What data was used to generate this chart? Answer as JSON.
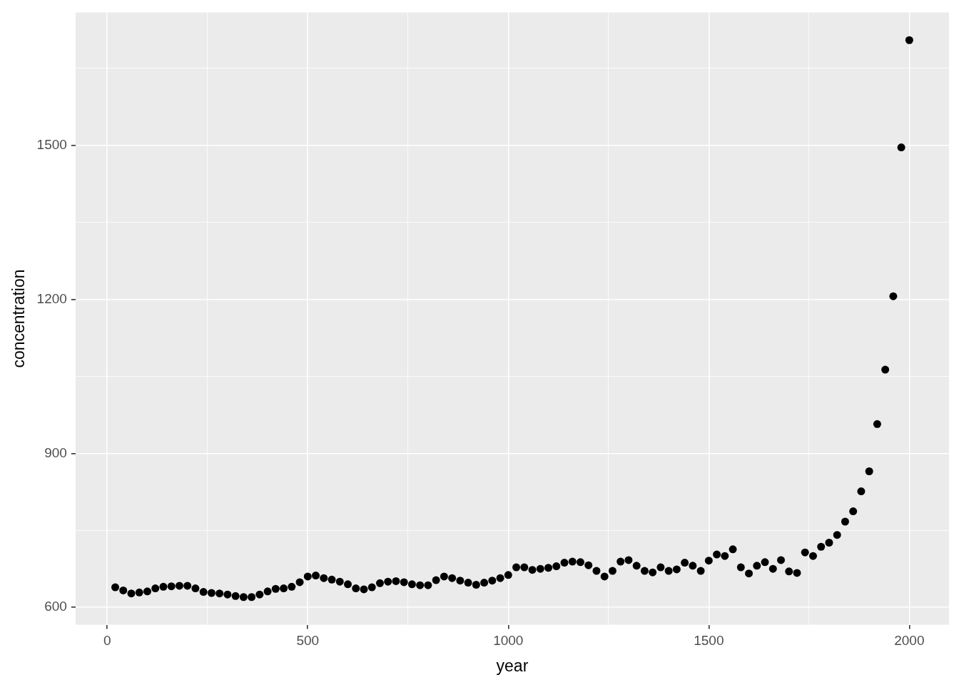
{
  "chart_data": {
    "type": "scatter",
    "xlabel": "year",
    "ylabel": "concentration",
    "marker": "circle",
    "grid": true,
    "legend": false,
    "x": [
      20,
      40,
      60,
      80,
      100,
      120,
      140,
      160,
      180,
      200,
      220,
      240,
      260,
      280,
      300,
      320,
      340,
      360,
      380,
      400,
      420,
      440,
      460,
      480,
      500,
      520,
      540,
      560,
      580,
      600,
      620,
      640,
      660,
      680,
      700,
      720,
      740,
      760,
      780,
      800,
      820,
      840,
      860,
      880,
      900,
      920,
      940,
      960,
      980,
      1000,
      1020,
      1040,
      1060,
      1080,
      1100,
      1120,
      1140,
      1160,
      1180,
      1200,
      1220,
      1240,
      1260,
      1280,
      1300,
      1320,
      1340,
      1360,
      1380,
      1400,
      1420,
      1440,
      1460,
      1480,
      1500,
      1520,
      1540,
      1560,
      1580,
      1600,
      1620,
      1640,
      1660,
      1680,
      1700,
      1720,
      1740,
      1760,
      1780,
      1800,
      1820,
      1840,
      1860,
      1880,
      1900,
      1920,
      1940,
      1960,
      1980,
      2000
    ],
    "series": [
      {
        "color": "#000000",
        "values": [
          639,
          633,
          627,
          629,
          631,
          637,
          640,
          641,
          642,
          642,
          637,
          630,
          628,
          627,
          625,
          622,
          620,
          620,
          625,
          631,
          636,
          637,
          640,
          649,
          660,
          662,
          657,
          654,
          650,
          645,
          637,
          635,
          639,
          647,
          650,
          651,
          649,
          645,
          643,
          643,
          653,
          660,
          657,
          652,
          648,
          644,
          648,
          652,
          657,
          663,
          678,
          678,
          673,
          675,
          677,
          680,
          687,
          689,
          688,
          682,
          671,
          660,
          671,
          689,
          692,
          681,
          671,
          668,
          678,
          671,
          674,
          687,
          681,
          671,
          691,
          703,
          700,
          713,
          678,
          666,
          681,
          688,
          675,
          692,
          670,
          667,
          707,
          700,
          718,
          726,
          741,
          767,
          787,
          826,
          865,
          957,
          1063,
          1206,
          1496,
          1705
        ]
      }
    ],
    "xlim": [
      -79,
      2099
    ],
    "ylim": [
      566,
      1759
    ],
    "xticks": [
      0,
      {
        "value": 250,
        "label": null
      },
      500,
      {
        "value": 750,
        "label": null
      },
      1000,
      {
        "value": 1250,
        "label": null
      },
      1500,
      {
        "value": 1750,
        "label": null
      },
      2000
    ],
    "yticks": [
      600,
      {
        "value": 750,
        "label": null
      },
      900,
      {
        "value": 1050,
        "label": null
      },
      1200,
      {
        "value": 1350,
        "label": null
      },
      1500,
      {
        "value": 1650,
        "label": null
      }
    ]
  }
}
